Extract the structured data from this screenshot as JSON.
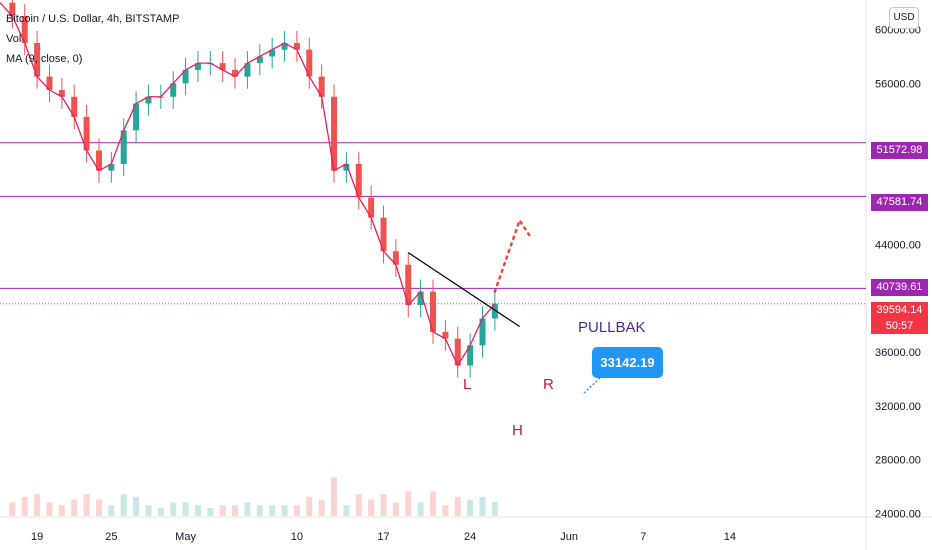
{
  "header": {
    "symbol_line": "Bitcoin / U.S. Dollar, 4h, BITSTAMP",
    "vol_label": "Vol",
    "ma_label": "MA (9, close, 0)"
  },
  "currency_button": "USD",
  "colors": {
    "up": "#26a69a",
    "down": "#ef5350",
    "ma": "#e91e63",
    "level": "#9c27b0",
    "current": "#f23645",
    "callout": "#2196f3",
    "label": "#b71c3b"
  },
  "annotations": {
    "callout": "33142.19",
    "pullback": "PULLBAK",
    "left_shoulder": "L",
    "head": "H",
    "right_shoulder": "R"
  },
  "current_price": {
    "price": "39594.14",
    "countdown": "50:57"
  },
  "chart_data": {
    "type": "line",
    "title": "Bitcoin / U.S. Dollar, 4h, BITSTAMP",
    "xlabel": "",
    "ylabel": "",
    "y_axis": {
      "ticks": [
        60000,
        56000,
        44000,
        36000,
        32000,
        28000,
        24000
      ],
      "tick_labels": [
        "60000.00",
        "56000.00",
        "44000.00",
        "36000.00",
        "32000.00",
        "28000.00",
        "24000.00"
      ],
      "range": [
        23800,
        62200
      ]
    },
    "x_axis": {
      "tick_labels": [
        "19",
        "25",
        "May",
        "10",
        "17",
        "24",
        "Jun",
        "7",
        "14"
      ],
      "tick_dates": [
        "2021-04-19",
        "2021-04-25",
        "2021-05-01",
        "2021-05-10",
        "2021-05-17",
        "2021-05-24",
        "2021-06-01",
        "2021-06-07",
        "2021-06-14"
      ],
      "range": [
        "2021-04-16",
        "2021-06-25"
      ]
    },
    "grid": false,
    "price_levels": [
      {
        "value": 51572.98,
        "label": "51572.98"
      },
      {
        "value": 47581.74,
        "label": "47581.74"
      },
      {
        "value": 40739.61,
        "label": "40739.61"
      }
    ],
    "series": [
      {
        "name": "",
        "x": [
          "2021-04-16",
          "2021-04-17",
          "2021-04-18",
          "2021-04-19",
          "2021-04-20",
          "2021-04-21",
          "2021-04-22",
          "2021-04-23",
          "2021-04-24",
          "2021-04-25",
          "2021-04-26",
          "2021-04-27",
          "2021-04-28",
          "2021-04-29",
          "2021-04-30",
          "2021-05-01",
          "2021-05-02",
          "2021-05-03",
          "2021-05-04",
          "2021-05-05",
          "2021-05-06",
          "2021-05-07",
          "2021-05-08",
          "2021-05-09",
          "2021-05-10",
          "2021-05-11",
          "2021-05-12",
          "2021-05-13",
          "2021-05-14",
          "2021-05-15",
          "2021-05-16",
          "2021-05-17",
          "2021-05-18",
          "2021-05-19",
          "2021-05-20",
          "2021-05-21",
          "2021-05-22",
          "2021-05-23",
          "2021-05-24",
          "2021-05-25",
          "2021-05-26"
        ],
        "values": [
          62000,
          61000,
          59000,
          56500,
          55500,
          55000,
          53500,
          51000,
          49500,
          50000,
          52500,
          54500,
          55000,
          55000,
          56000,
          57000,
          57500,
          57500,
          57000,
          56500,
          57500,
          58000,
          58500,
          59000,
          58500,
          56500,
          55000,
          49500,
          50000,
          47500,
          46000,
          43500,
          42500,
          39500,
          40500,
          37500,
          37000,
          35000,
          36500,
          38500,
          39594
        ]
      }
    ],
    "projection": {
      "x": [
        "2021-05-26",
        "2021-05-28",
        "2021-05-29"
      ],
      "values": [
        40500,
        45800,
        44400
      ]
    }
  }
}
